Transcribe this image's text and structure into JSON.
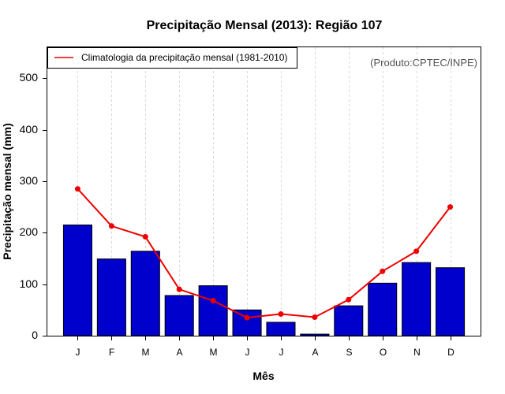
{
  "chart_data": {
    "type": "bar",
    "title": "Precipitação Mensal (2013): Região 107",
    "xlabel": "Mês",
    "ylabel": "Precipitação mensal (mm)",
    "ylim": [
      0,
      560
    ],
    "yticks": [
      0,
      100,
      200,
      300,
      400,
      500
    ],
    "categories": [
      "J",
      "F",
      "M",
      "A",
      "M",
      "J",
      "J",
      "A",
      "S",
      "O",
      "N",
      "D"
    ],
    "series": [
      {
        "name": "Precipitação mensal 2013",
        "type": "bar",
        "color": "#0000cd",
        "values": [
          215,
          149,
          164,
          78,
          97,
          50,
          26,
          3,
          58,
          102,
          142,
          132
        ]
      },
      {
        "name": "Climatologia da precipitação mensal (1981-2010)",
        "type": "line",
        "color": "#ee0000",
        "values": [
          285,
          213,
          192,
          90,
          68,
          35,
          42,
          36,
          70,
          125,
          164,
          250
        ]
      }
    ],
    "legend": {
      "label": "Climatologia da precipitação mensal (1981-2010)",
      "position": "top-left"
    },
    "credit": "(Produto:CPTEC/INPE)",
    "grid": "vertical dashed"
  }
}
